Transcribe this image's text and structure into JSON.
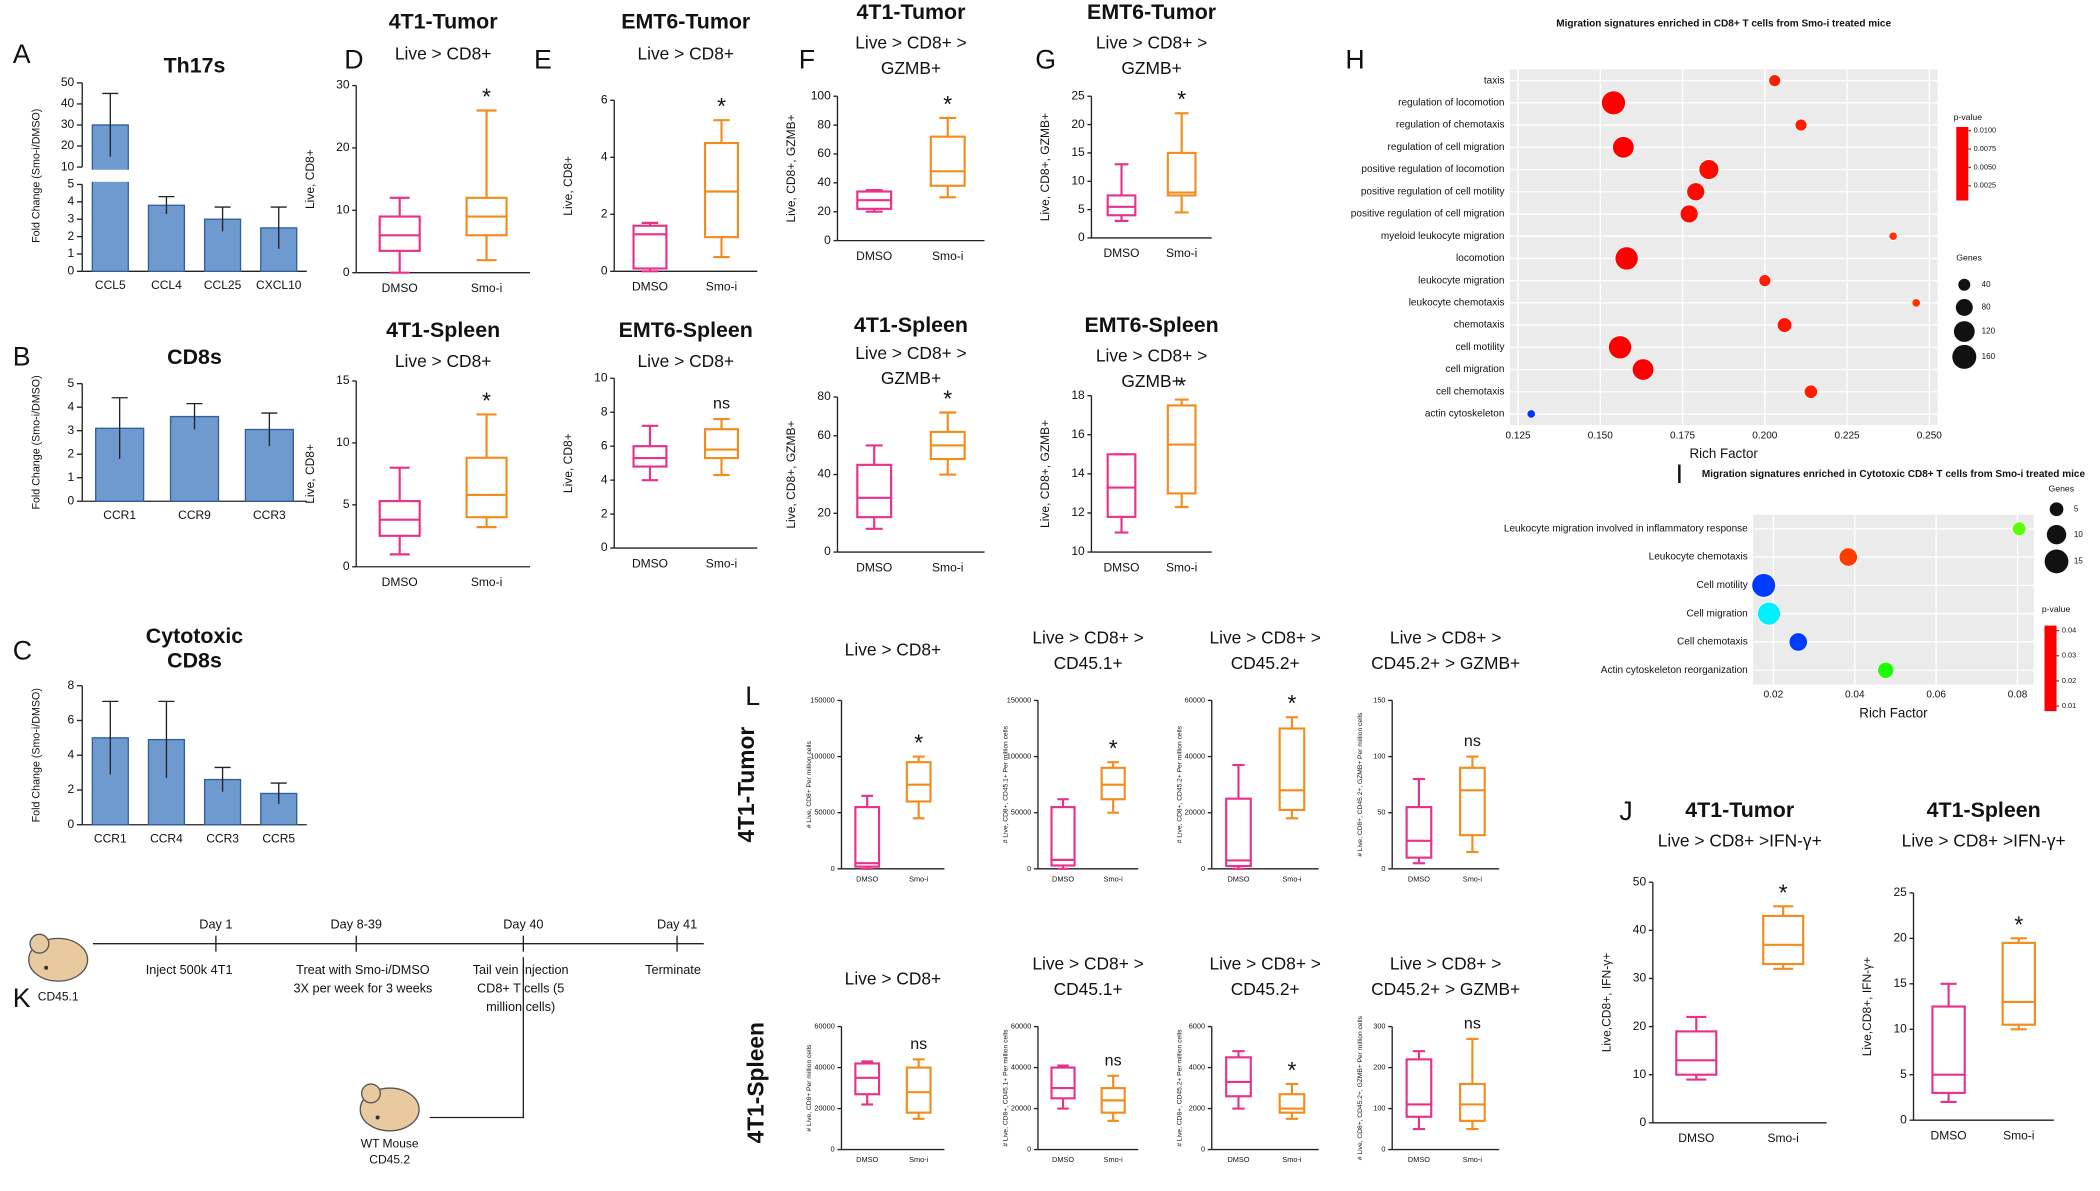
{
  "panel_labels": [
    "A",
    "B",
    "C",
    "D",
    "E",
    "F",
    "G",
    "H",
    "I",
    "J",
    "K",
    "L"
  ],
  "row_labels": [
    "4T1-Tumor",
    "4T1-Spleen"
  ],
  "timeline": {
    "days": [
      "Day 1",
      "Day 8-39",
      "Day 40",
      "Day 41"
    ],
    "events": [
      [
        "Inject 500k 4T1"
      ],
      [
        "Treat with Smo-i/DMSO",
        "3X per week for 3 weeks"
      ],
      [
        "Tail vein injection",
        "CD8+ T cells (5",
        "million cells)"
      ],
      [
        "Terminate"
      ]
    ],
    "donor": "CD45.1",
    "recipient": [
      "WT Mouse",
      "CD45.2"
    ]
  },
  "chart_data": [
    {
      "type": "bar",
      "title": "Th17s",
      "ylabel": "Fold Change (Smo-i/DMSO)",
      "categories": [
        "CCL5",
        "CCL4",
        "CCL25",
        "CXCL10"
      ],
      "values": [
        30,
        3.8,
        3,
        2.5
      ],
      "errors": [
        15,
        0.5,
        0.7,
        1.2
      ],
      "color": "#6e9ad0",
      "edge": "#2f5f9e",
      "segments": [
        {
          "ylim": [
            0,
            5
          ],
          "yticks": [
            0,
            1,
            2,
            3,
            4,
            5
          ]
        },
        {
          "ylim": [
            10,
            50
          ],
          "yticks": [
            10,
            20,
            30,
            40,
            50
          ]
        }
      ]
    },
    {
      "type": "bar",
      "title": "CD8s",
      "ylabel": "Fold Change (Smo-i/DMSO)",
      "categories": [
        "CCR1",
        "CCR9",
        "CCR3"
      ],
      "values": [
        3.1,
        3.6,
        3.05
      ],
      "errors": [
        1.3,
        0.55,
        0.7
      ],
      "color": "#6e9ad0",
      "edge": "#2f5f9e",
      "ylim": [
        0,
        5
      ],
      "yticks": [
        0,
        1,
        2,
        3,
        4,
        5
      ]
    },
    {
      "type": "bar",
      "title_lines": [
        "Cytotoxic",
        "CD8s"
      ],
      "ylabel": "Fold Change (Smo-i/DMSO)",
      "categories": [
        "CCR1",
        "CCR4",
        "CCR3",
        "CCR5"
      ],
      "values": [
        5,
        4.9,
        2.6,
        1.8
      ],
      "errors": [
        2.1,
        2.2,
        0.7,
        0.6
      ],
      "color": "#6e9ad0",
      "edge": "#2f5f9e",
      "ylim": [
        0,
        8
      ],
      "yticks": [
        0,
        2,
        4,
        6,
        8
      ]
    },
    {
      "type": "box",
      "title": "4T1-Tumor",
      "subtitle_lines": [
        "Live > CD8+"
      ],
      "ylabel": "Live, CD8+",
      "categories": [
        "DMSO",
        "Smo-i"
      ],
      "colors": [
        "#e8318a",
        "#f28c1c"
      ],
      "ylim": [
        0,
        30
      ],
      "yticks": [
        0,
        10,
        20,
        30
      ],
      "boxes": [
        {
          "min": 0,
          "q1": 3.5,
          "median": 6,
          "q3": 9,
          "max": 12
        },
        {
          "min": 2,
          "q1": 6,
          "median": 9,
          "q3": 12,
          "max": 26
        }
      ],
      "annotation": "*"
    },
    {
      "type": "box",
      "title": "EMT6-Tumor",
      "subtitle_lines": [
        "Live > CD8+"
      ],
      "ylabel": "Live, CD8+",
      "categories": [
        "DMSO",
        "Smo-i"
      ],
      "colors": [
        "#e8318a",
        "#f28c1c"
      ],
      "ylim": [
        0,
        6
      ],
      "yticks": [
        0,
        2,
        4,
        6
      ],
      "boxes": [
        {
          "min": 0,
          "q1": 0.1,
          "median": 1.3,
          "q3": 1.6,
          "max": 1.7
        },
        {
          "min": 0.5,
          "q1": 1.2,
          "median": 2.8,
          "q3": 4.5,
          "max": 5.3
        }
      ],
      "annotation": "*"
    },
    {
      "type": "box",
      "title": "4T1-Tumor",
      "subtitle_lines": [
        "Live > CD8+ >",
        "GZMB+"
      ],
      "ylabel": "Live, CD8+, GZMB+",
      "categories": [
        "DMSO",
        "Smo-i"
      ],
      "colors": [
        "#e8318a",
        "#f28c1c"
      ],
      "ylim": [
        0,
        100
      ],
      "yticks": [
        0,
        20,
        40,
        60,
        80,
        100
      ],
      "boxes": [
        {
          "min": 20,
          "q1": 22,
          "median": 28,
          "q3": 34,
          "max": 35
        },
        {
          "min": 30,
          "q1": 38,
          "median": 48,
          "q3": 72,
          "max": 85
        }
      ],
      "annotation": "*"
    },
    {
      "type": "box",
      "title": "EMT6-Tumor",
      "subtitle_lines": [
        "Live > CD8+ >",
        "GZMB+"
      ],
      "ylabel": "Live, CD8+, GZMB+",
      "categories": [
        "DMSO",
        "Smo-i"
      ],
      "colors": [
        "#e8318a",
        "#f28c1c"
      ],
      "ylim": [
        0,
        25
      ],
      "yticks": [
        0,
        5,
        10,
        15,
        20,
        25
      ],
      "boxes": [
        {
          "min": 3,
          "q1": 4,
          "median": 5.5,
          "q3": 7.5,
          "max": 13
        },
        {
          "min": 4.5,
          "q1": 7.5,
          "median": 8,
          "q3": 15,
          "max": 22
        }
      ],
      "annotation": "*"
    },
    {
      "type": "box",
      "title": "4T1-Spleen",
      "subtitle_lines": [
        "Live > CD8+"
      ],
      "ylabel": "Live, CD8+",
      "categories": [
        "DMSO",
        "Smo-i"
      ],
      "colors": [
        "#e8318a",
        "#f28c1c"
      ],
      "ylim": [
        0,
        15
      ],
      "yticks": [
        0,
        5,
        10,
        15
      ],
      "boxes": [
        {
          "min": 1,
          "q1": 2.5,
          "median": 3.8,
          "q3": 5.3,
          "max": 8
        },
        {
          "min": 3.2,
          "q1": 4,
          "median": 5.8,
          "q3": 8.8,
          "max": 12.3
        }
      ],
      "annotation": "*"
    },
    {
      "type": "box",
      "title": "EMT6-Spleen",
      "subtitle_lines": [
        "Live > CD8+"
      ],
      "ylabel": "Live, CD8+",
      "categories": [
        "DMSO",
        "Smo-i"
      ],
      "colors": [
        "#e8318a",
        "#f28c1c"
      ],
      "ylim": [
        0,
        10
      ],
      "yticks": [
        0,
        2,
        4,
        6,
        8,
        10
      ],
      "boxes": [
        {
          "min": 4,
          "q1": 4.8,
          "median": 5.3,
          "q3": 6,
          "max": 7.2
        },
        {
          "min": 4.3,
          "q1": 5.3,
          "median": 5.8,
          "q3": 7,
          "max": 7.6
        }
      ],
      "annotation": "ns"
    },
    {
      "type": "box",
      "title": "4T1-Spleen",
      "subtitle_lines": [
        "Live > CD8+ >",
        "GZMB+"
      ],
      "ylabel": "Live, CD8+, GZMB+",
      "categories": [
        "DMSO",
        "Smo-i"
      ],
      "colors": [
        "#e8318a",
        "#f28c1c"
      ],
      "ylim": [
        0,
        80
      ],
      "yticks": [
        0,
        20,
        40,
        60,
        80
      ],
      "boxes": [
        {
          "min": 12,
          "q1": 18,
          "median": 28,
          "q3": 45,
          "max": 55
        },
        {
          "min": 40,
          "q1": 48,
          "median": 55,
          "q3": 62,
          "max": 72
        }
      ],
      "annotation": "*"
    },
    {
      "type": "box",
      "title": "EMT6-Spleen",
      "subtitle_lines": [
        "Live > CD8+ >",
        "GZMB+"
      ],
      "ylabel": "Live, CD8+, GZMB+",
      "categories": [
        "DMSO",
        "Smo-i"
      ],
      "colors": [
        "#e8318a",
        "#f28c1c"
      ],
      "ylim": [
        10,
        18
      ],
      "yticks": [
        10,
        12,
        14,
        16,
        18
      ],
      "boxes": [
        {
          "min": 11,
          "q1": 11.8,
          "median": 13.3,
          "q3": 15,
          "max": 15
        },
        {
          "min": 12.3,
          "q1": 13,
          "median": 15.5,
          "q3": 17.5,
          "max": 17.8
        }
      ],
      "annotation": "*"
    },
    {
      "type": "box",
      "subtitle_lines": [
        "Live > CD8+"
      ],
      "ylabel": "# Live, CD8+ Per million cells",
      "categories": [
        "DMSO",
        "Smo-i"
      ],
      "colors": [
        "#e8318a",
        "#f28c1c"
      ],
      "ylim": [
        0,
        150000
      ],
      "yticks": [
        0,
        50000,
        100000,
        150000
      ],
      "boxes": [
        {
          "min": 0,
          "q1": 2000,
          "median": 5000,
          "q3": 55000,
          "max": 65000
        },
        {
          "min": 45000,
          "q1": 60000,
          "median": 75000,
          "q3": 95000,
          "max": 100000
        }
      ],
      "annotation": "*"
    },
    {
      "type": "box",
      "subtitle_lines": [
        "Live > CD8+ >",
        "CD45.1+"
      ],
      "ylabel": "# Live, CD8+, CD45.1+ Per million cells",
      "categories": [
        "DMSO",
        "Smo-i"
      ],
      "colors": [
        "#e8318a",
        "#f28c1c"
      ],
      "ylim": [
        0,
        150000
      ],
      "yticks": [
        0,
        50000,
        100000,
        150000
      ],
      "boxes": [
        {
          "min": 0,
          "q1": 3000,
          "median": 8000,
          "q3": 55000,
          "max": 62000
        },
        {
          "min": 50000,
          "q1": 62000,
          "median": 75000,
          "q3": 90000,
          "max": 95000
        }
      ],
      "annotation": "*"
    },
    {
      "type": "box",
      "subtitle_lines": [
        "Live > CD8+ >",
        "CD45.2+"
      ],
      "ylabel": "# Live, CD8+, CD45.2+ Per million cells",
      "categories": [
        "DMSO",
        "Smo-i"
      ],
      "colors": [
        "#e8318a",
        "#f28c1c"
      ],
      "ylim": [
        0,
        60000
      ],
      "yticks": [
        0,
        20000,
        40000,
        60000
      ],
      "boxes": [
        {
          "min": 0,
          "q1": 1000,
          "median": 3000,
          "q3": 25000,
          "max": 37000
        },
        {
          "min": 18000,
          "q1": 21000,
          "median": 28000,
          "q3": 50000,
          "max": 54000
        }
      ],
      "annotation": "*"
    },
    {
      "type": "box",
      "subtitle_lines": [
        "Live > CD8+ >",
        "CD45.2+ > GZMB+"
      ],
      "ylabel": "# Live, CD8+, CD45.2+, GZMB+ Per million cells",
      "categories": [
        "DMSO",
        "Smo-i"
      ],
      "colors": [
        "#e8318a",
        "#f28c1c"
      ],
      "ylim": [
        0,
        150
      ],
      "yticks": [
        0,
        50,
        100,
        150
      ],
      "boxes": [
        {
          "min": 5,
          "q1": 10,
          "median": 25,
          "q3": 55,
          "max": 80
        },
        {
          "min": 15,
          "q1": 30,
          "median": 70,
          "q3": 90,
          "max": 100
        }
      ],
      "annotation": "ns"
    },
    {
      "type": "box",
      "subtitle_lines": [
        "Live > CD8+"
      ],
      "ylabel": "# Live, CD8+ Per million cells",
      "categories": [
        "DMSO",
        "Smo-i"
      ],
      "colors": [
        "#e8318a",
        "#f28c1c"
      ],
      "ylim": [
        0,
        60000
      ],
      "yticks": [
        0,
        20000,
        40000,
        60000
      ],
      "boxes": [
        {
          "min": 22000,
          "q1": 27000,
          "median": 35000,
          "q3": 42000,
          "max": 43000
        },
        {
          "min": 15000,
          "q1": 18000,
          "median": 28000,
          "q3": 40000,
          "max": 44000
        }
      ],
      "annotation": "ns"
    },
    {
      "type": "box",
      "subtitle_lines": [
        "Live > CD8+ >",
        "CD45.1+"
      ],
      "ylabel": "# Live, CD8+, CD45.1+ Per million cells",
      "categories": [
        "DMSO",
        "Smo-i"
      ],
      "colors": [
        "#e8318a",
        "#f28c1c"
      ],
      "ylim": [
        0,
        60000
      ],
      "yticks": [
        0,
        20000,
        40000,
        60000
      ],
      "boxes": [
        {
          "min": 20000,
          "q1": 25000,
          "median": 30000,
          "q3": 40000,
          "max": 41000
        },
        {
          "min": 14000,
          "q1": 18000,
          "median": 24000,
          "q3": 30000,
          "max": 36000
        }
      ],
      "annotation": "ns"
    },
    {
      "type": "box",
      "subtitle_lines": [
        "Live > CD8+ >",
        "CD45.2+"
      ],
      "ylabel": "# Live, CD8+, CD45.2+ Per million cells",
      "categories": [
        "DMSO",
        "Smo-i"
      ],
      "colors": [
        "#e8318a",
        "#f28c1c"
      ],
      "ylim": [
        0,
        6000
      ],
      "yticks": [
        0,
        2000,
        4000,
        6000
      ],
      "boxes": [
        {
          "min": 2000,
          "q1": 2600,
          "median": 3300,
          "q3": 4500,
          "max": 4800
        },
        {
          "min": 1500,
          "q1": 1800,
          "median": 2000,
          "q3": 2700,
          "max": 3200
        }
      ],
      "annotation": "*"
    },
    {
      "type": "box",
      "subtitle_lines": [
        "Live > CD8+ >",
        "CD45.2+ > GZMB+"
      ],
      "ylabel": "# Live, CD8+, CD45.2+, GZMB+ Per million cells",
      "categories": [
        "DMSO",
        "Smo-i"
      ],
      "colors": [
        "#e8318a",
        "#f28c1c"
      ],
      "ylim": [
        0,
        300
      ],
      "yticks": [
        0,
        100,
        200,
        300
      ],
      "boxes": [
        {
          "min": 50,
          "q1": 80,
          "median": 110,
          "q3": 220,
          "max": 240
        },
        {
          "min": 50,
          "q1": 70,
          "median": 110,
          "q3": 160,
          "max": 270
        }
      ],
      "annotation": "ns"
    },
    {
      "type": "box",
      "title": "4T1-Tumor",
      "subtitle_lines": [
        "Live > CD8+ >IFN-γ+"
      ],
      "ylabel": "Live,CD8+, IFN-γ+",
      "categories": [
        "DMSO",
        "Smo-i"
      ],
      "colors": [
        "#e8318a",
        "#f28c1c"
      ],
      "ylim": [
        0,
        50
      ],
      "yticks": [
        0,
        10,
        20,
        30,
        40,
        50
      ],
      "boxes": [
        {
          "min": 9,
          "q1": 10,
          "median": 13,
          "q3": 19,
          "max": 22
        },
        {
          "min": 32,
          "q1": 33,
          "median": 37,
          "q3": 43,
          "max": 45
        }
      ],
      "annotation": "*"
    },
    {
      "type": "box",
      "title": "4T1-Spleen",
      "subtitle_lines": [
        "Live > CD8+ >IFN-γ+"
      ],
      "ylabel": "Live,CD8+, IFN-γ+",
      "categories": [
        "DMSO",
        "Smo-i"
      ],
      "colors": [
        "#e8318a",
        "#f28c1c"
      ],
      "ylim": [
        0,
        25
      ],
      "yticks": [
        0,
        5,
        10,
        15,
        20,
        25
      ],
      "boxes": [
        {
          "min": 2,
          "q1": 3,
          "median": 5,
          "q3": 12.5,
          "max": 15
        },
        {
          "min": 10,
          "q1": 10.5,
          "median": 13,
          "q3": 19.5,
          "max": 20
        }
      ],
      "annotation": "*"
    },
    {
      "type": "dot",
      "title": "Migration signatures enriched in CD8+ T cells from Smo-i treated mice",
      "xlabel": "Rich Factor",
      "categories": [
        "taxis",
        "regulation of locomotion",
        "regulation of chemotaxis",
        "regulation of cell migration",
        "positive regulation of locomotion",
        "positive regulation of cell motility",
        "positive regulation of cell migration",
        "myeloid leukocyte migration",
        "locomotion",
        "leukocyte migration",
        "leukocyte chemotaxis",
        "chemotaxis",
        "cell motility",
        "cell migration",
        "cell chemotaxis",
        "actin cytoskeleton"
      ],
      "values": [
        0.203,
        0.154,
        0.211,
        0.157,
        0.183,
        0.179,
        0.177,
        0.239,
        0.158,
        0.2,
        0.246,
        0.206,
        0.156,
        0.163,
        0.214,
        0.129
      ],
      "sizes": [
        40,
        160,
        40,
        130,
        110,
        90,
        90,
        20,
        150,
        40,
        20,
        60,
        150,
        130,
        50,
        20
      ],
      "pvalues": [
        0.0008,
        0.0005,
        0.0008,
        0.0005,
        0.0006,
        0.0006,
        0.0006,
        0.001,
        0.0005,
        0.0008,
        0.001,
        0.0007,
        0.0005,
        0.0005,
        0.0008,
        0.01
      ],
      "xlim": [
        0.1225,
        0.2525
      ],
      "xticks": [
        0.125,
        {
          "value": 0.15,
          "label": "0.150"
        },
        0.175,
        {
          "value": 0.2,
          "label": "0.200"
        },
        0.225,
        {
          "value": 0.25,
          "label": "0.250"
        }
      ],
      "color_legend_title": "p-value",
      "colorbar": {
        "lim": [
          0.0005,
          0.0105
        ],
        "ticks": [
          {
            "value": 0.01,
            "label": "0.0100"
          },
          0.0075,
          {
            "value": 0.005,
            "label": "0.0050"
          },
          0.0025
        ],
        "colors": [
          "#ff0000",
          "#ffff00",
          "#00ff00",
          "#00ffff",
          "#0000ff"
        ]
      },
      "size_legend_title": "Genes",
      "size_legend": [
        40,
        80,
        120,
        160
      ],
      "grid": true
    },
    {
      "type": "dot",
      "title": "Migration signatures enriched in Cytotoxic CD8+ T cells from Smo-i treated mice",
      "xlabel": "Rich Factor",
      "categories": [
        "Leukocyte migration involved in inflammatory response",
        "Leukocyte chemotaxis",
        "Cell motility",
        "Cell migration",
        "Cell chemotaxis",
        "Actin cytoskeleton reorganization"
      ],
      "values": [
        0.0804,
        0.0384,
        0.0176,
        0.0189,
        0.0261,
        0.0476
      ],
      "sizes": [
        5,
        9,
        15,
        14,
        9,
        7
      ],
      "pvalues": [
        0.022,
        0.01,
        0.04,
        0.034,
        0.04,
        0.024
      ],
      "xlim": [
        0.015,
        0.084
      ],
      "xticks": [
        0.02,
        0.04,
        0.06,
        0.08
      ],
      "color_legend_title": "p-value",
      "colorbar": {
        "lim": [
          0.008,
          0.042
        ],
        "ticks": [
          0.04,
          0.03,
          0.02,
          0.01
        ],
        "colors": [
          "#ff0000",
          "#ffff00",
          "#00ff00",
          "#00ffff",
          "#0000ff"
        ]
      },
      "size_legend_title": "Genes",
      "size_legend": [
        5,
        10,
        15
      ],
      "grid": true
    }
  ]
}
